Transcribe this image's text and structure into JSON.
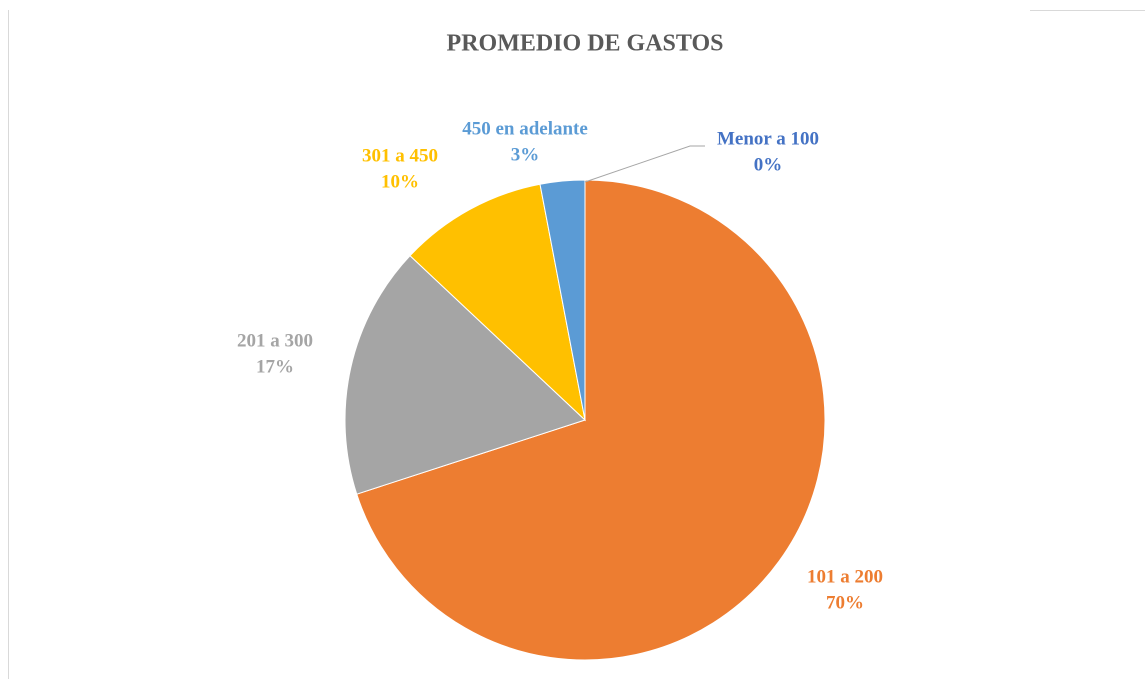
{
  "chart_data": {
    "type": "pie",
    "title": "PROMEDIO DE GASTOS",
    "categories": [
      "Menor a 100",
      "101 a 200",
      "201 a 300",
      "301 a 450",
      "450 en adelante"
    ],
    "values": [
      0,
      70,
      17,
      10,
      3
    ],
    "value_labels": [
      "0%",
      "70%",
      "17%",
      "10%",
      "3%"
    ],
    "colors": [
      "#4472c4",
      "#ed7d31",
      "#a5a5a5",
      "#ffc000",
      "#5b9bd5"
    ]
  }
}
